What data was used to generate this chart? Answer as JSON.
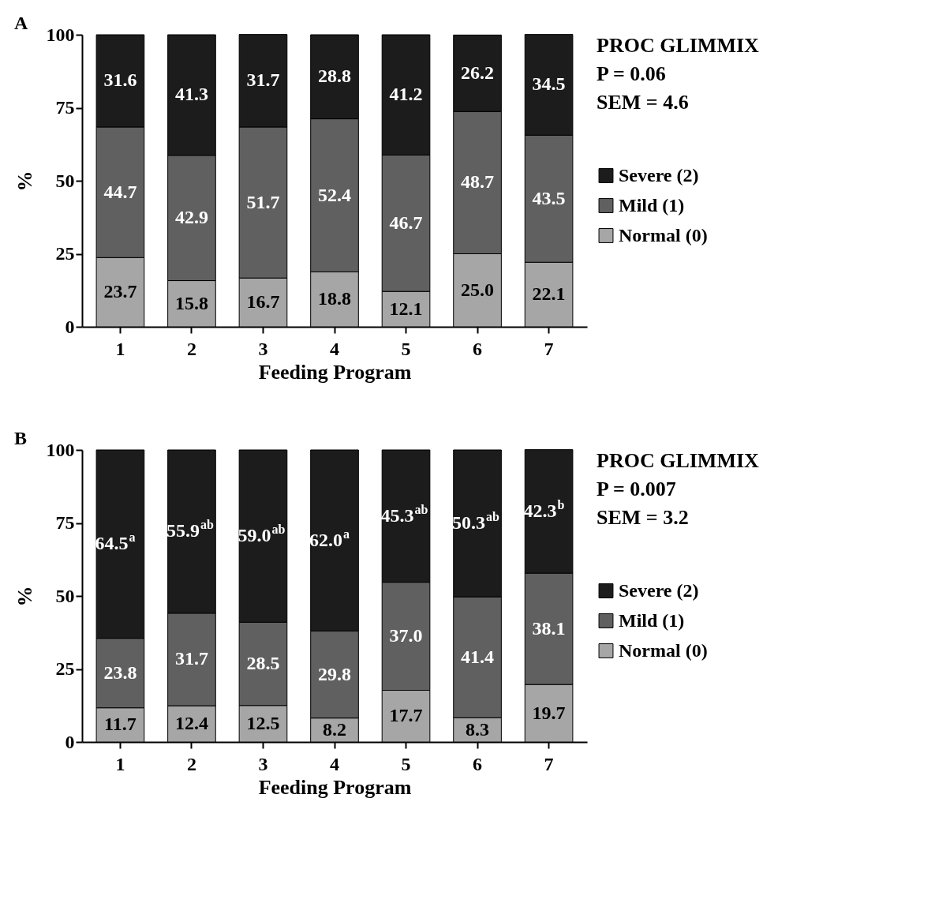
{
  "chart_data": [
    {
      "type": "bar",
      "title": "A",
      "xlabel": "Feeding Program",
      "ylabel": "%",
      "categories": [
        "1",
        "2",
        "3",
        "4",
        "5",
        "6",
        "7"
      ],
      "stacked": true,
      "ylim": [
        0,
        100
      ],
      "yticks": [
        0,
        25,
        50,
        75,
        100
      ],
      "grid": false,
      "legend": "right",
      "annotations": [
        "PROC GLIMMIX",
        "P = 0.06",
        "SEM = 4.6"
      ],
      "series": [
        {
          "name": "Normal (0)",
          "color": "#a6a6a6",
          "values": [
            23.7,
            15.8,
            16.7,
            18.8,
            12.1,
            25.0,
            22.1
          ],
          "value_labels": [
            "23.7",
            "15.8",
            "16.7",
            "18.8",
            "12.1",
            "25.0",
            "22.1"
          ]
        },
        {
          "name": "Mild (1)",
          "color": "#606060",
          "values": [
            44.7,
            42.9,
            51.7,
            52.4,
            46.7,
            48.7,
            43.5
          ],
          "value_labels": [
            "44.7",
            "42.9",
            "51.7",
            "52.4",
            "46.7",
            "48.7",
            "43.5"
          ]
        },
        {
          "name": "Severe (2)",
          "color": "#1c1c1c",
          "values": [
            31.6,
            41.3,
            31.7,
            28.8,
            41.2,
            26.2,
            34.5
          ],
          "value_labels": [
            "31.6",
            "41.3",
            "31.7",
            "28.8",
            "41.2",
            "26.2",
            "34.5"
          ]
        }
      ]
    },
    {
      "type": "bar",
      "title": "B",
      "xlabel": "Feeding Program",
      "ylabel": "%",
      "categories": [
        "1",
        "2",
        "3",
        "4",
        "5",
        "6",
        "7"
      ],
      "stacked": true,
      "ylim": [
        0,
        100
      ],
      "yticks": [
        0,
        25,
        50,
        75,
        100
      ],
      "grid": false,
      "legend": "right",
      "annotations": [
        "PROC GLIMMIX",
        "P = 0.007",
        "SEM = 3.2"
      ],
      "series": [
        {
          "name": "Normal (0)",
          "color": "#a6a6a6",
          "values": [
            11.7,
            12.4,
            12.5,
            8.2,
            17.7,
            8.3,
            19.7
          ],
          "value_labels": [
            "11.7",
            "12.4",
            "12.5",
            "8.2",
            "17.7",
            "8.3",
            "19.7"
          ]
        },
        {
          "name": "Mild (1)",
          "color": "#606060",
          "values": [
            23.8,
            31.7,
            28.5,
            29.8,
            37.0,
            41.4,
            38.1
          ],
          "value_labels": [
            "23.8",
            "31.7",
            "28.5",
            "29.8",
            "37.0",
            "41.4",
            "38.1"
          ]
        },
        {
          "name": "Severe (2)",
          "color": "#1c1c1c",
          "values": [
            64.5,
            55.9,
            59.0,
            62.0,
            45.3,
            50.3,
            42.3
          ],
          "value_labels": [
            "64.5$^{a}$",
            "55.9$^{ab}$",
            "59.0$^{ab}$",
            "62.0$^{a}$",
            "45.3$^{ab}$",
            "50.3$^{ab}$",
            "42.3$^{b}$"
          ]
        }
      ]
    }
  ]
}
